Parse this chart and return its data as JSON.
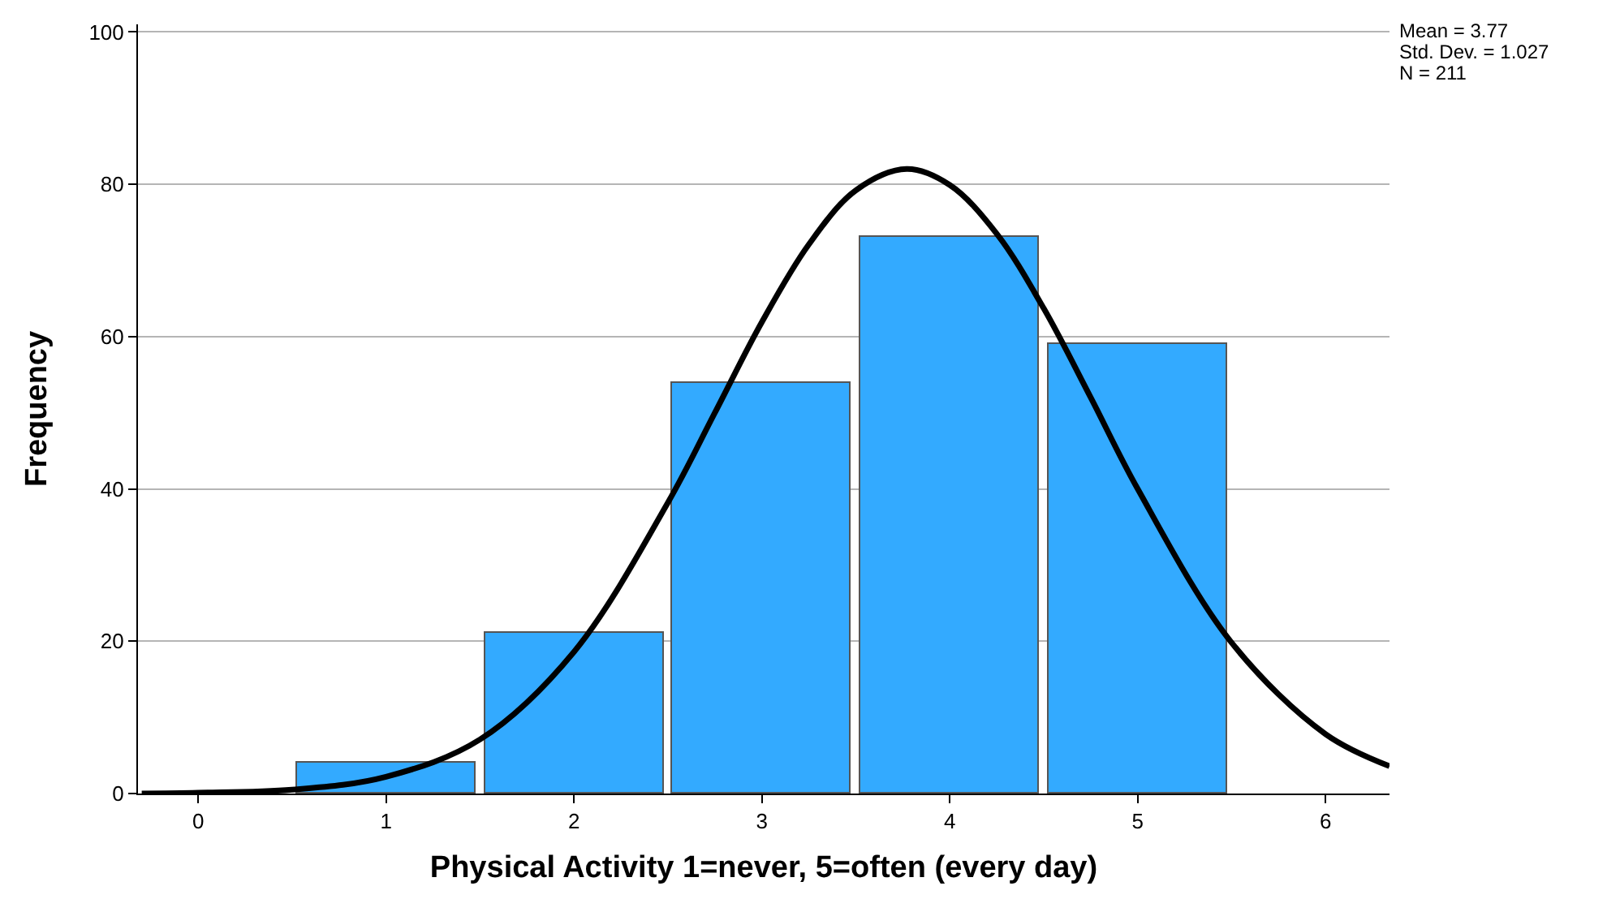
{
  "chart_data": {
    "type": "histogram",
    "xlabel": "Physical Activity 1=never, 5=often (every day)",
    "ylabel": "Frequency",
    "bins": [
      0.5,
      1.5,
      2.5,
      3.5,
      4.5,
      5.5
    ],
    "values": [
      4,
      21,
      54,
      73,
      59
    ],
    "color": "#33aaff",
    "series": [
      {
        "type": "line",
        "color": "#000000",
        "x": [
          -0.3,
          0,
          0.5,
          1,
          1.5,
          2,
          2.5,
          2.75,
          3,
          3.25,
          3.5,
          3.77,
          4,
          4.25,
          4.5,
          4.75,
          5,
          5.5,
          6,
          6.34
        ],
        "values": [
          0,
          0.1,
          0.5,
          2.2,
          7.1,
          18.6,
          38.2,
          50.0,
          61.9,
          72.1,
          79.2,
          82.0,
          79.9,
          73.5,
          63.7,
          52.0,
          40.0,
          19.8,
          7.8,
          3.6
        ]
      }
    ],
    "xlim": [
      -0.32,
      6.34
    ],
    "xticks": [
      0,
      1,
      2,
      3,
      4,
      5,
      6
    ],
    "ylim": [
      0,
      101
    ],
    "yticks": [
      0,
      20,
      40,
      60,
      80,
      100
    ],
    "grid": "y",
    "marker": "none",
    "line_style": "solid",
    "annotations": [
      "Mean = 3.77",
      "Std. Dev. = 1.027",
      "N = 211"
    ]
  }
}
